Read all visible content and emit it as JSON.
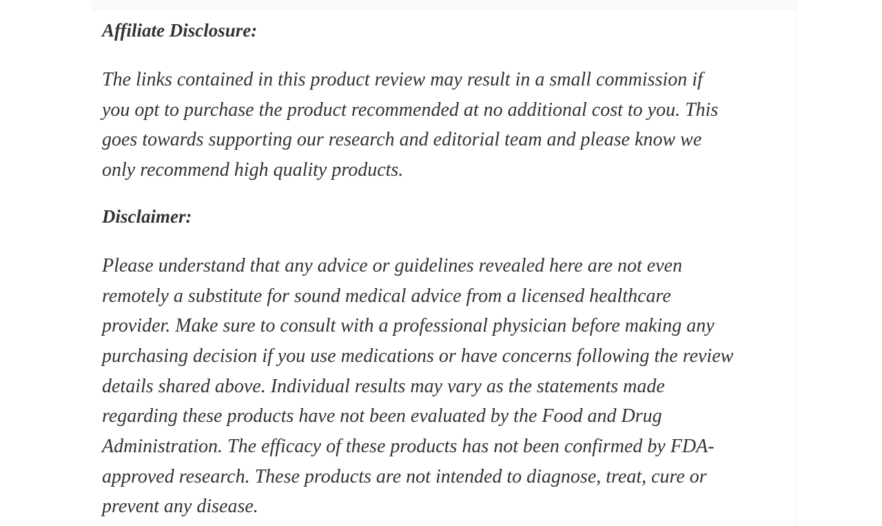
{
  "page": {
    "background_color": "#ffffff",
    "text_color": "#333333",
    "top_band_color": "#fafafa",
    "divider_color": "#efefef"
  },
  "article": {
    "sections": [
      {
        "heading": "Affiliate Disclosure:",
        "body": "The links contained in this product review may result in a small commission if\nyou opt to purchase the product recommended at no additional cost to you. This\ngoes towards supporting our research and editorial team and please know we\nonly recommend high quality products."
      },
      {
        "heading": "Disclaimer:",
        "body": "Please understand that any advice or guidelines revealed here are not even\nremotely a substitute for sound medical advice from a licensed healthcare\nprovider. Make sure to consult with a professional physician before making any\npurchasing decision if you use medications or have concerns following the review\ndetails shared above. Individual results may vary as the statements made\nregarding these products have not been evaluated by the Food and Drug\nAdministration. The efficacy of these products has not been confirmed by FDA-\napproved research. These products are not intended to diagnose, treat, cure or\nprevent any disease."
      }
    ]
  }
}
